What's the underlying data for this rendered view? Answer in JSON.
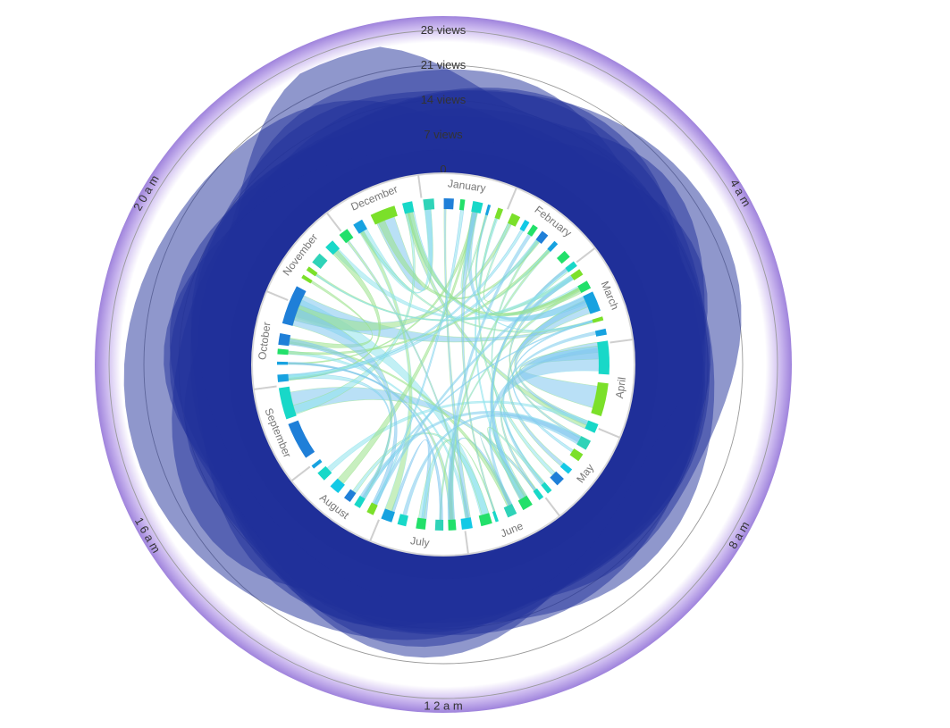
{
  "chart_data": {
    "type": "radial-area-with-chord",
    "radial_axis": {
      "tick_labels": [
        "0",
        "7 views",
        "14 views",
        "21 views",
        "28 views"
      ],
      "max": 28
    },
    "time_axis": {
      "labels": [
        "4 a m",
        "8 a m",
        "1 2 a m",
        "1 6 a m",
        "2 0 a m"
      ],
      "hours": [
        4,
        8,
        12,
        16,
        20
      ]
    },
    "months": [
      "January",
      "February",
      "March",
      "April",
      "May",
      "June",
      "July",
      "August",
      "September",
      "October",
      "November",
      "December"
    ],
    "series_count": 12,
    "colors": {
      "area_dark": "#1f2f99",
      "area_light": "#4a5ab3",
      "rim_outer": "#a98ee0",
      "rim_inner": "#ffffff",
      "grid": "#9a9a9a",
      "month_ring": "#e8e8e8",
      "chord_blue": "#7fc6ee",
      "chord_cyan": "#8fe3ec",
      "chord_green": "#9be28a"
    }
  }
}
